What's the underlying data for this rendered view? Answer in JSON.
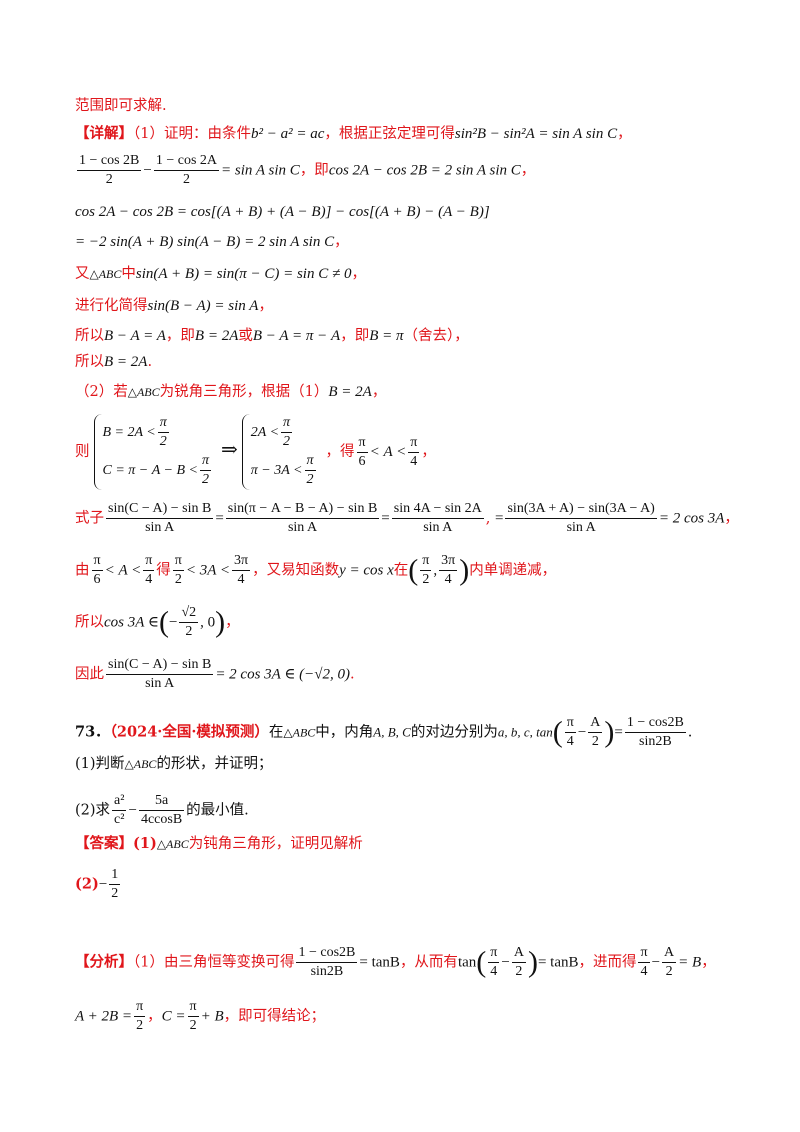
{
  "lines": {
    "l1": "范围即可求解.",
    "l2_tag": "【详解】",
    "l2_text": "（1）证明：由条件",
    "l2_math1": "b² − a² = ac",
    "l2_text2": "，根据正弦定理可得",
    "l2_math2": "sin²B − sin²A = sin A sin C",
    "l2_end": "，",
    "l3_num1": "1 − cos 2B",
    "l3_den1": "2",
    "l3_num2": "1 − cos 2A",
    "l3_den2": "2",
    "l3_rest": "= sin A sin C",
    "l3_text": "，即",
    "l3_math2": "cos 2A − cos 2B = 2 sin A sin C",
    "l3_end": "，",
    "l4": "cos 2A − cos 2B = cos[(A + B) + (A − B)] − cos[(A + B) − (A − B)]",
    "l5": "= −2 sin(A + B) sin(A − B) = 2 sin A sin C",
    "l5_end": "，",
    "l6_text": "又",
    "l6_tri": "△ABC",
    "l6_text2": "中",
    "l6_math": "sin(A + B) = sin(π − C) = sin C ≠ 0",
    "l6_end": "，",
    "l7_text": "进行化简得",
    "l7_math": "sin(B − A) = sin A",
    "l7_end": "，",
    "l8_text": "所以",
    "l8_m1": "B − A = A",
    "l8_t2": "，即",
    "l8_m2": "B = 2A",
    "l8_t3": "或",
    "l8_m3": "B − A = π − A",
    "l8_t4": "，即",
    "l8_m4": "B = π",
    "l8_t5": "（舍去），",
    "l9_text": "所以",
    "l9_math": "B = 2A",
    "l9_end": ".",
    "l10_text": "（2）若",
    "l10_tri": "△ABC",
    "l10_text2": "为锐角三角形，根据（1）",
    "l10_math": "B = 2A",
    "l10_end": "，",
    "l11_text": "则",
    "l11_s1a": "B = 2A <",
    "l11_s1b": "C = π − A − B <",
    "l11_arrow": "⇒",
    "l11_s2a": "2A <",
    "l11_s2b": "π − 3A <",
    "l11_pi": "π",
    "l11_two": "2",
    "l11_text2": "，得",
    "l11_six": "6",
    "l11_mid": "< A <",
    "l11_four": "4",
    "l11_end": "，",
    "l12_text": "式子",
    "l12_n1": "sin(C − A) − sin B",
    "l12_d1": "sin A",
    "l12_n2": "sin(π − A − B − A) − sin B",
    "l12_d2": "sin A",
    "l12_n3": "sin 4A − sin 2A",
    "l12_d3": "sin A",
    "l12_n4": "sin(3A + A) − sin(3A − A)",
    "l12_d4": "sin A",
    "l12_res": "= 2 cos 3A",
    "l12_end": "，",
    "l13_text": "由",
    "l13_m1": "< A <",
    "l13_t2": "得",
    "l13_m2": "< 3A <",
    "l13_three_pi": "3π",
    "l13_t3": "，又易知函数",
    "l13_func": "y = cos x",
    "l13_t4": "在",
    "l13_t5": "内单调递减，",
    "l14_text": "所以",
    "l14_math": "cos 3A ∈",
    "l14_sqrt2": "√2",
    "l14_tail": ", 0",
    "l14_end": "，",
    "l15_text": "因此",
    "l15_num": "sin(C − A) − sin B",
    "l15_den": "sin A",
    "l15_res": "= 2 cos 3A ∈ (−√2, 0)",
    "l15_end": ".",
    "q73_num": "73．",
    "q73_src": "（2024·全国·模拟预测）",
    "q73_t1": "在",
    "q73_tri": "△ABC",
    "q73_t2": "中，内角",
    "q73_abc": "A, B, C",
    "q73_t3": "的对边分别为",
    "q73_sides": "a, b, c, tan",
    "q73_num2": "1 − cos2B",
    "q73_den2": "sin2B",
    "q73_end": ".",
    "q1_t1": "(1)判断",
    "q1_tri": "△ABC",
    "q1_t2": "的形状，并证明；",
    "q2_t1": "(2)求",
    "q2_n1": "a²",
    "q2_d1": "c²",
    "q2_n2": "5a",
    "q2_d2": "4ccosB",
    "q2_t2": "的最小值.",
    "ans_tag": "【答案】",
    "ans_1": "(1)",
    "ans_tri": "△ABC",
    "ans_t": "为钝角三角形，证明见解析",
    "ans_2": "(2)",
    "ans_neg": "−",
    "ans_n": "1",
    "ans_d": "2",
    "ana_tag": "【分析】",
    "ana_t1": "（1）由三角恒等变换可得",
    "ana_n": "1 − cos2B",
    "ana_d": "sin2B",
    "ana_eq": "= tanB",
    "ana_t2": "，从而有",
    "ana_tan": "tan",
    "ana_eq2": "= tanB",
    "ana_t3": "，进而得",
    "ana_eq3": "= B",
    "ana_end": "，",
    "l_last_m1": "A + 2B =",
    "l_last_t1": "，",
    "l_last_m2": "C =",
    "l_last_m3": "+ B",
    "l_last_t2": "，即可得结论；",
    "pi": "π",
    "two": "2",
    "four": "4",
    "six": "6",
    "A_over": "A",
    "minus": "−",
    "comma": ","
  }
}
